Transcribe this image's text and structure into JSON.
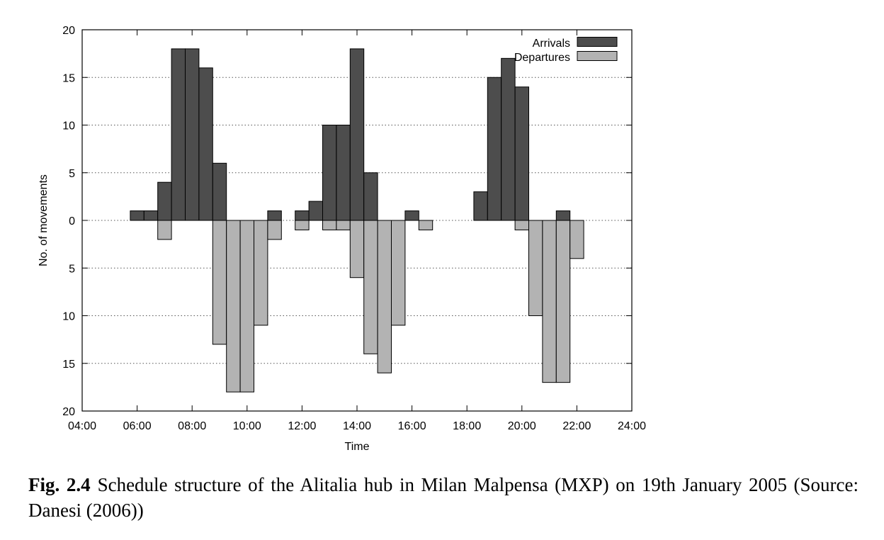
{
  "caption": {
    "label": "Fig. 2.4",
    "text": "Schedule structure of the Alitalia hub in Milan Malpensa (MXP) on 19th January 2005 (Source: Danesi (2006))"
  },
  "chart_data": {
    "type": "bar",
    "xlabel": "Time",
    "ylabel": "No. of movements",
    "x_ticks": [
      "04:00",
      "06:00",
      "08:00",
      "10:00",
      "12:00",
      "14:00",
      "16:00",
      "18:00",
      "20:00",
      "22:00",
      "24:00"
    ],
    "y_ticks": [
      "20",
      "15",
      "10",
      "5",
      "0",
      "5",
      "10",
      "15",
      "20"
    ],
    "xlim": [
      "04:00",
      "24:00"
    ],
    "ylim": [
      -20,
      20
    ],
    "bin_minutes": 30,
    "grid": "horizontal dotted",
    "legend_position": "top-right",
    "colors": {
      "arrivals": "#4d4d4d",
      "departures": "#b3b3b3"
    },
    "series": [
      {
        "name": "Arrivals",
        "direction": "up",
        "bins": [
          {
            "start": "05:45",
            "value": 1
          },
          {
            "start": "06:15",
            "value": 1
          },
          {
            "start": "06:45",
            "value": 4
          },
          {
            "start": "07:15",
            "value": 18
          },
          {
            "start": "07:45",
            "value": 18
          },
          {
            "start": "08:15",
            "value": 16
          },
          {
            "start": "08:45",
            "value": 6
          },
          {
            "start": "10:45",
            "value": 1
          },
          {
            "start": "11:45",
            "value": 1
          },
          {
            "start": "12:15",
            "value": 2
          },
          {
            "start": "12:45",
            "value": 10
          },
          {
            "start": "13:15",
            "value": 10
          },
          {
            "start": "13:45",
            "value": 18
          },
          {
            "start": "14:15",
            "value": 5
          },
          {
            "start": "15:45",
            "value": 1
          },
          {
            "start": "18:15",
            "value": 3
          },
          {
            "start": "18:45",
            "value": 15
          },
          {
            "start": "19:15",
            "value": 17
          },
          {
            "start": "19:45",
            "value": 14
          },
          {
            "start": "21:15",
            "value": 1
          }
        ]
      },
      {
        "name": "Departures",
        "direction": "down",
        "bins": [
          {
            "start": "06:45",
            "value": 2
          },
          {
            "start": "08:45",
            "value": 13
          },
          {
            "start": "09:15",
            "value": 18
          },
          {
            "start": "09:45",
            "value": 18
          },
          {
            "start": "10:15",
            "value": 11
          },
          {
            "start": "10:45",
            "value": 2
          },
          {
            "start": "11:45",
            "value": 1
          },
          {
            "start": "12:45",
            "value": 1
          },
          {
            "start": "13:15",
            "value": 1
          },
          {
            "start": "13:45",
            "value": 6
          },
          {
            "start": "14:15",
            "value": 14
          },
          {
            "start": "14:45",
            "value": 16
          },
          {
            "start": "15:15",
            "value": 11
          },
          {
            "start": "16:15",
            "value": 1
          },
          {
            "start": "19:45",
            "value": 1
          },
          {
            "start": "20:15",
            "value": 10
          },
          {
            "start": "20:45",
            "value": 17
          },
          {
            "start": "21:15",
            "value": 17
          },
          {
            "start": "21:45",
            "value": 4
          }
        ]
      }
    ]
  }
}
